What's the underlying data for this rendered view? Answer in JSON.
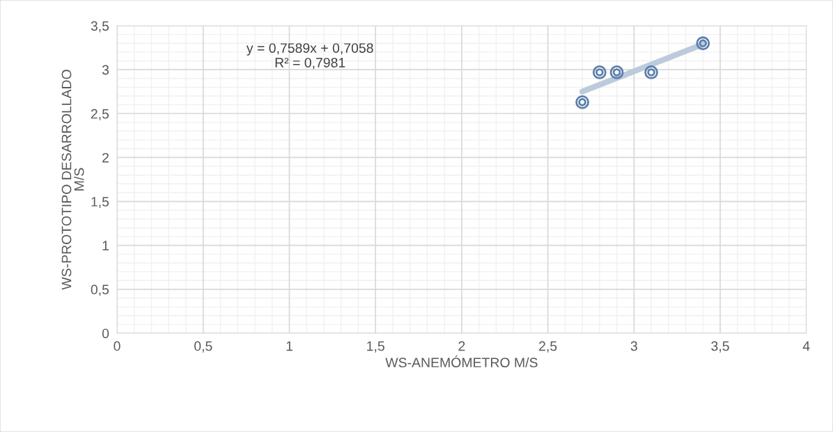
{
  "chart_data": {
    "type": "scatter",
    "xlabel": "WS-ANEMÓMETRO M/S",
    "ylabel": "WS-PROTOTIPO DESARROLLADO\nM/S",
    "series": [
      {
        "color": "#5b7fab",
        "x": [
          2.7,
          2.8,
          2.9,
          3.1,
          3.4
        ],
        "values": [
          2.63,
          2.97,
          2.97,
          2.97,
          3.3
        ]
      },
      {
        "type": "line",
        "color": "#bccbdc",
        "x": [
          2.7,
          3.4
        ],
        "values": [
          2.75,
          3.29
        ]
      }
    ],
    "xlim": [
      0,
      4
    ],
    "ylim": [
      0,
      3.5
    ],
    "xticks": [
      0,
      {
        "value": 0.5,
        "label": "0,5"
      },
      1,
      {
        "value": 1.5,
        "label": "1,5"
      },
      2,
      {
        "value": 2.5,
        "label": "2,5"
      },
      3,
      {
        "value": 3.5,
        "label": "3,5"
      },
      4
    ],
    "yticks": [
      0,
      {
        "value": 0.5,
        "label": "0,5"
      },
      1,
      {
        "value": 1.5,
        "label": "1,5"
      },
      2,
      {
        "value": 2.5,
        "label": "2,5"
      },
      3,
      {
        "value": 3.5,
        "label": "3,5"
      }
    ],
    "annotations": [
      "y = 0,7589x + 0,7058\nR² = 0,7981"
    ],
    "grid": true,
    "marker": "circle"
  }
}
